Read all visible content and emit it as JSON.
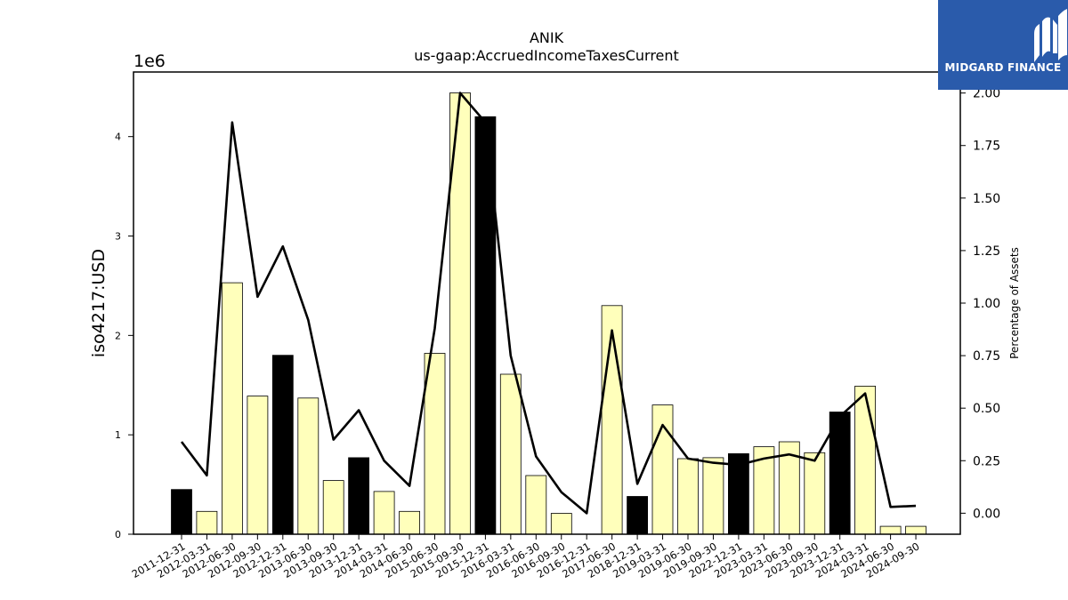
{
  "brand": {
    "name": "MIDGARD FINANCE",
    "color": "#2a5bab",
    "icon": "midgard-logo-icon"
  },
  "chart_data": {
    "type": "bar",
    "title": "ANIK",
    "subtitle": "us-gaap:AccruedIncomeTaxesCurrent",
    "ylabel": "iso4217:USD",
    "y2label": "Percentage of Assets",
    "scale_label": "1e6",
    "ylim": [
      0,
      4.65
    ],
    "y2lim": [
      -0.1,
      2.1
    ],
    "yticks": [
      0,
      1,
      2,
      3,
      4
    ],
    "y2ticks": [
      "0.00",
      "0.25",
      "0.50",
      "0.75",
      "1.00",
      "1.25",
      "1.50",
      "1.75",
      "2.00"
    ],
    "bar_colors": {
      "annual": "#000000",
      "quarterly": "#ffffbb"
    },
    "line_color": "#000000",
    "categories": [
      "2011-12-31",
      "2012-03-31",
      "2012-06-30",
      "2012-09-30",
      "2012-12-31",
      "2013-06-30",
      "2013-09-30",
      "2013-12-31",
      "2014-03-31",
      "2014-06-30",
      "2015-06-30",
      "2015-09-30",
      "2015-12-31",
      "2016-03-31",
      "2016-06-30",
      "2016-09-30",
      "2016-12-31",
      "2017-06-30",
      "2018-12-31",
      "2019-03-31",
      "2019-06-30",
      "2019-09-30",
      "2022-12-31",
      "2023-03-31",
      "2023-06-30",
      "2023-09-30",
      "2023-12-31",
      "2024-03-31",
      "2024-06-30",
      "2024-09-30"
    ],
    "values": [
      0.45,
      0.23,
      2.53,
      1.39,
      1.8,
      1.37,
      0.54,
      0.77,
      0.43,
      0.23,
      1.82,
      4.44,
      4.2,
      1.61,
      0.59,
      0.21,
      0.0,
      2.3,
      0.38,
      1.3,
      0.76,
      0.77,
      0.81,
      0.88,
      0.93,
      0.82,
      1.23,
      1.49,
      0.08,
      0.08
    ],
    "bar_types": [
      "annual",
      "quarterly",
      "quarterly",
      "quarterly",
      "annual",
      "quarterly",
      "quarterly",
      "annual",
      "quarterly",
      "quarterly",
      "quarterly",
      "quarterly",
      "annual",
      "quarterly",
      "quarterly",
      "quarterly",
      "annual",
      "quarterly",
      "annual",
      "quarterly",
      "quarterly",
      "quarterly",
      "annual",
      "quarterly",
      "quarterly",
      "quarterly",
      "annual",
      "quarterly",
      "quarterly",
      "quarterly"
    ],
    "pct_of_assets": [
      0.34,
      0.18,
      1.86,
      1.03,
      1.27,
      0.92,
      0.35,
      0.49,
      0.25,
      0.13,
      0.88,
      2.0,
      1.86,
      0.75,
      0.27,
      0.1,
      0.0,
      0.87,
      0.14,
      0.42,
      0.26,
      0.24,
      0.23,
      0.26,
      0.28,
      0.25,
      0.46,
      0.57,
      0.03,
      0.035
    ]
  }
}
